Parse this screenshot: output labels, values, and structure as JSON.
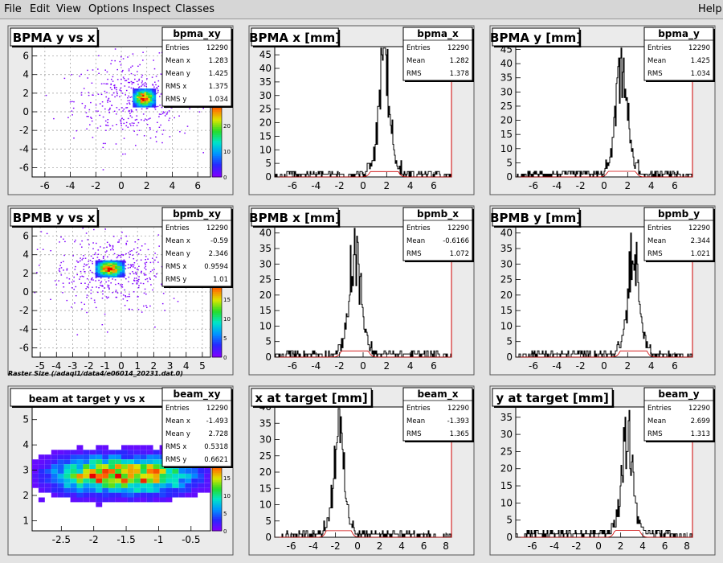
{
  "menu": {
    "items": [
      "File",
      "Edit",
      "View",
      "Options",
      "Inspect",
      "Classes"
    ],
    "help": "Help"
  },
  "footnote": "Raster Size (/adaql1/data4/e06014_20231.dat.0)",
  "panels": [
    {
      "type": "scatter2d",
      "title": "BPMA y vs x",
      "stats": {
        "name": "bpma_xy",
        "rows": [
          [
            "Entries",
            "12290"
          ],
          [
            "Mean x",
            "1.283"
          ],
          [
            "Mean y",
            "1.425"
          ],
          [
            "RMS x",
            "1.375"
          ],
          [
            "RMS y",
            "1.034"
          ]
        ]
      },
      "xlim": [
        -7,
        7
      ],
      "ylim": [
        -7,
        7
      ],
      "xticks": [
        -6,
        -4,
        -2,
        0,
        2,
        4,
        6
      ],
      "yticks": [
        -6,
        -4,
        -2,
        0,
        2,
        4,
        6
      ],
      "core": {
        "x": 1.8,
        "y": 1.5,
        "sx": 0.45,
        "sy": 0.5
      },
      "halo": {
        "x": 1.0,
        "y": 1.3,
        "sx": 2.4,
        "sy": 2.2
      },
      "zaxis": [
        0,
        10,
        20
      ],
      "zmax": 30,
      "grid": true
    },
    {
      "type": "hist1d",
      "title": "BPMA x [mm]",
      "stats": {
        "name": "bpma_x",
        "rows": [
          [
            "Entries",
            "12290"
          ],
          [
            "Mean",
            "1.282"
          ],
          [
            "RMS",
            "1.378"
          ]
        ]
      },
      "xlim": [
        -7.5,
        7.5
      ],
      "ylim": [
        0,
        48
      ],
      "xticks": [
        -6,
        -4,
        -2,
        0,
        2,
        4,
        6
      ],
      "yticks": [
        0,
        5,
        10,
        15,
        20,
        25,
        30,
        35,
        40,
        45
      ],
      "peak": {
        "mean": 1.8,
        "sigma": 0.45,
        "height": 38
      },
      "bg": 2
    },
    {
      "type": "hist1d",
      "title": "BPMA y [mm]",
      "stats": {
        "name": "bpma_y",
        "rows": [
          [
            "Entries",
            "12290"
          ],
          [
            "Mean",
            "1.425"
          ],
          [
            "RMS",
            "1.034"
          ]
        ]
      },
      "xlim": [
        -7.5,
        7.5
      ],
      "ylim": [
        0,
        46
      ],
      "xticks": [
        -6,
        -4,
        -2,
        0,
        2,
        4,
        6
      ],
      "yticks": [
        0,
        5,
        10,
        15,
        20,
        25,
        30,
        35,
        40,
        45
      ],
      "peak": {
        "mean": 1.5,
        "sigma": 0.45,
        "height": 36
      },
      "bg": 2
    },
    {
      "type": "scatter2d",
      "title": "BPMB y vs x",
      "stats": {
        "name": "bpmb_xy",
        "rows": [
          [
            "Entries",
            "12290"
          ],
          [
            "Mean x",
            "-0.59"
          ],
          [
            "Mean y",
            "2.346"
          ],
          [
            "RMS x",
            "0.9594"
          ],
          [
            "RMS y",
            "1.01"
          ]
        ]
      },
      "xlim": [
        -5.5,
        5.5
      ],
      "ylim": [
        -7,
        7
      ],
      "xticks": [
        -5,
        -4,
        -3,
        -2,
        -1,
        0,
        1,
        2,
        3,
        4,
        5
      ],
      "yticks": [
        -6,
        -4,
        -2,
        0,
        2,
        4,
        6
      ],
      "core": {
        "x": -0.7,
        "y": 2.5,
        "sx": 0.45,
        "sy": 0.45
      },
      "halo": {
        "x": -0.6,
        "y": 2.2,
        "sx": 1.9,
        "sy": 2.0
      },
      "zaxis": [
        0,
        5,
        10,
        15
      ],
      "zmax": 20,
      "grid": true
    },
    {
      "type": "hist1d",
      "title": "BPMB x [mm]",
      "stats": {
        "name": "bpmb_x",
        "rows": [
          [
            "Entries",
            "12290"
          ],
          [
            "Mean",
            "-0.6166"
          ],
          [
            "RMS",
            "1.072"
          ]
        ]
      },
      "xlim": [
        -7.5,
        7.5
      ],
      "ylim": [
        0,
        42
      ],
      "xticks": [
        -6,
        -4,
        -2,
        0,
        2,
        4,
        6
      ],
      "yticks": [
        0,
        5,
        10,
        15,
        20,
        25,
        30,
        35,
        40
      ],
      "peak": {
        "mean": -0.7,
        "sigma": 0.45,
        "height": 32
      },
      "bg": 2
    },
    {
      "type": "hist1d",
      "title": "BPMB y [mm]",
      "stats": {
        "name": "bpmb_y",
        "rows": [
          [
            "Entries",
            "12290"
          ],
          [
            "Mean",
            "2.344"
          ],
          [
            "RMS",
            "1.021"
          ]
        ]
      },
      "xlim": [
        -7.5,
        7.5
      ],
      "ylim": [
        0,
        42
      ],
      "xticks": [
        -6,
        -4,
        -2,
        0,
        2,
        4,
        6
      ],
      "yticks": [
        0,
        5,
        10,
        15,
        20,
        25,
        30,
        35,
        40
      ],
      "peak": {
        "mean": 2.5,
        "sigma": 0.45,
        "height": 30
      },
      "bg": 2
    },
    {
      "type": "grid2d",
      "title": "beam at target y vs x",
      "stats": {
        "name": "beam_xy",
        "rows": [
          [
            "Entries",
            "12290"
          ],
          [
            "Mean x",
            "-1.493"
          ],
          [
            "Mean y",
            "2.728"
          ],
          [
            "RMS x",
            "0.5318"
          ],
          [
            "RMS y",
            "0.6621"
          ]
        ]
      },
      "xlim": [
        -2.95,
        -0.2
      ],
      "ylim": [
        0.6,
        5.5
      ],
      "xticks": [
        -2.5,
        -2,
        -1.5,
        -1,
        -0.5
      ],
      "yticks": [
        1,
        2,
        3,
        4,
        5
      ],
      "blob": {
        "x": -1.55,
        "y": 2.8,
        "sx": 0.75,
        "sy": 0.45
      },
      "zaxis": [
        0,
        5,
        10,
        15
      ],
      "zmax": 20,
      "grid": false
    },
    {
      "type": "hist1d",
      "title": "x at target [mm]",
      "stats": {
        "name": "beam_x",
        "rows": [
          [
            "Entries",
            "12290"
          ],
          [
            "Mean",
            "-1.393"
          ],
          [
            "RMS",
            "1.365"
          ]
        ]
      },
      "xlim": [
        -7.5,
        8.5
      ],
      "ylim": [
        0,
        40
      ],
      "xticks": [
        -6,
        -4,
        -2,
        0,
        2,
        4,
        6,
        8
      ],
      "yticks": [
        0,
        5,
        10,
        15,
        20,
        25,
        30,
        35,
        40
      ],
      "peak": {
        "mean": -1.7,
        "sigma": 0.45,
        "height": 30
      },
      "bg": 2
    },
    {
      "type": "hist1d",
      "title": "y at target [mm]",
      "stats": {
        "name": "beam_y",
        "rows": [
          [
            "Entries",
            "12290"
          ],
          [
            "Mean",
            "2.699"
          ],
          [
            "RMS",
            "1.313"
          ]
        ]
      },
      "xlim": [
        -7.5,
        8.5
      ],
      "ylim": [
        0,
        38
      ],
      "xticks": [
        -6,
        -4,
        -2,
        0,
        2,
        4,
        6,
        8
      ],
      "yticks": [
        0,
        5,
        10,
        15,
        20,
        25,
        30,
        35
      ],
      "peak": {
        "mean": 2.6,
        "sigma": 0.45,
        "height": 28
      },
      "bg": 2
    }
  ],
  "chart_data": [
    {
      "type": "scatter",
      "title": "BPMA y vs x",
      "xlim": [
        -7,
        7
      ],
      "ylim": [
        -7,
        7
      ],
      "entries": 12290,
      "mean_x": 1.283,
      "mean_y": 1.425,
      "rms_x": 1.375,
      "rms_y": 1.034
    },
    {
      "type": "bar",
      "title": "BPMA x [mm]",
      "xlim": [
        -7.5,
        7.5
      ],
      "ylim": [
        0,
        48
      ],
      "entries": 12290,
      "mean": 1.282,
      "rms": 1.378,
      "peak_x": 1.8,
      "peak_count": 45
    },
    {
      "type": "bar",
      "title": "BPMA y [mm]",
      "xlim": [
        -7.5,
        7.5
      ],
      "ylim": [
        0,
        46
      ],
      "entries": 12290,
      "mean": 1.425,
      "rms": 1.034,
      "peak_x": 1.5,
      "peak_count": 45
    },
    {
      "type": "scatter",
      "title": "BPMB y vs x",
      "xlim": [
        -5.5,
        5.5
      ],
      "ylim": [
        -7,
        7
      ],
      "entries": 12290,
      "mean_x": -0.59,
      "mean_y": 2.346,
      "rms_x": 0.9594,
      "rms_y": 1.01
    },
    {
      "type": "bar",
      "title": "BPMB x [mm]",
      "xlim": [
        -7.5,
        7.5
      ],
      "ylim": [
        0,
        42
      ],
      "entries": 12290,
      "mean": -0.6166,
      "rms": 1.072,
      "peak_x": -0.7,
      "peak_count": 40
    },
    {
      "type": "bar",
      "title": "BPMB y [mm]",
      "xlim": [
        -7.5,
        7.5
      ],
      "ylim": [
        0,
        42
      ],
      "entries": 12290,
      "mean": 2.344,
      "rms": 1.021,
      "peak_x": 2.5,
      "peak_count": 40
    },
    {
      "type": "heatmap",
      "title": "beam at target y vs x",
      "xlim": [
        -2.95,
        -0.2
      ],
      "ylim": [
        0.6,
        5.5
      ],
      "entries": 12290,
      "mean_x": -1.493,
      "mean_y": 2.728,
      "rms_x": 0.5318,
      "rms_y": 0.6621
    },
    {
      "type": "bar",
      "title": "x at target [mm]",
      "xlim": [
        -7.5,
        8.5
      ],
      "ylim": [
        0,
        40
      ],
      "entries": 12290,
      "mean": -1.393,
      "rms": 1.365,
      "peak_x": -1.7,
      "peak_count": 38
    },
    {
      "type": "bar",
      "title": "y at target [mm]",
      "xlim": [
        -7.5,
        8.5
      ],
      "ylim": [
        0,
        38
      ],
      "entries": 12290,
      "mean": 2.699,
      "rms": 1.313,
      "peak_x": 2.6,
      "peak_count": 37
    }
  ]
}
